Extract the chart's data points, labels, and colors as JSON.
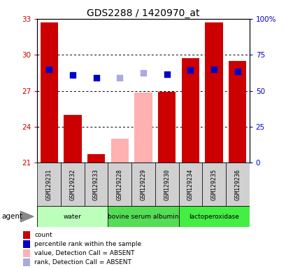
{
  "title": "GDS2288 / 1420970_at",
  "samples": [
    "GSM129231",
    "GSM129232",
    "GSM129233",
    "GSM129228",
    "GSM129229",
    "GSM129230",
    "GSM129234",
    "GSM129235",
    "GSM129236"
  ],
  "bar_values": [
    32.7,
    25.0,
    21.7,
    null,
    null,
    26.9,
    29.7,
    32.7,
    29.5
  ],
  "bar_color_present": "#cc0000",
  "bar_color_absent": "#ffb0b0",
  "absent_bar_values": [
    null,
    null,
    null,
    23.0,
    26.85,
    null,
    null,
    null,
    null
  ],
  "rank_present": [
    28.8,
    28.3,
    28.1,
    null,
    null,
    28.4,
    28.7,
    28.8,
    28.6
  ],
  "rank_absent": [
    null,
    null,
    null,
    28.1,
    28.5,
    null,
    null,
    null,
    null
  ],
  "rank_color_present": "#0000cc",
  "rank_color_absent": "#aaaadd",
  "ylim": [
    21,
    33
  ],
  "yticks": [
    21,
    24,
    27,
    30,
    33
  ],
  "ytick_labels_left": [
    "21",
    "24",
    "27",
    "30",
    "33"
  ],
  "ytick_labels_right": [
    "0",
    "25",
    "50",
    "75",
    "100%"
  ],
  "groups": [
    {
      "label": "water",
      "samples": [
        0,
        1,
        2
      ],
      "color": "#bbffbb"
    },
    {
      "label": "bovine serum albumin",
      "samples": [
        3,
        4,
        5
      ],
      "color": "#55dd55"
    },
    {
      "label": "lactoperoxidase",
      "samples": [
        6,
        7,
        8
      ],
      "color": "#44ee44"
    }
  ],
  "agent_label": "agent",
  "legend_items": [
    {
      "label": "count",
      "color": "#cc0000"
    },
    {
      "label": "percentile rank within the sample",
      "color": "#0000cc"
    },
    {
      "label": "value, Detection Call = ABSENT",
      "color": "#ffb0b0"
    },
    {
      "label": "rank, Detection Call = ABSENT",
      "color": "#aaaadd"
    }
  ],
  "bar_width": 0.75,
  "rank_marker_size": 35,
  "figsize": [
    4.1,
    3.84
  ],
  "dpi": 100
}
